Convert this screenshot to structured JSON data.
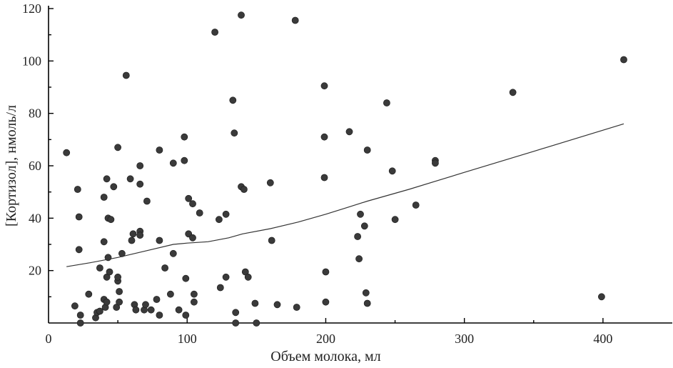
{
  "chart_data": {
    "type": "scatter",
    "xlabel": "Объем молока, мл",
    "ylabel": "[Кортизол], нмоль/л",
    "xlim": [
      0,
      450
    ],
    "ylim": [
      0,
      120
    ],
    "x_ticks": [
      0,
      100,
      200,
      300,
      400
    ],
    "x_tick_labels": [
      "0",
      "100",
      "200",
      "300",
      "400"
    ],
    "y_ticks": [
      20,
      40,
      60,
      80,
      100,
      120
    ],
    "y_tick_labels": [
      "20",
      "40",
      "60",
      "80",
      "100",
      "120"
    ],
    "grid": false,
    "points": [
      {
        "x": 13,
        "y": 65
      },
      {
        "x": 19,
        "y": 6.5
      },
      {
        "x": 21,
        "y": 51
      },
      {
        "x": 22,
        "y": 40.5
      },
      {
        "x": 22,
        "y": 28
      },
      {
        "x": 23,
        "y": 3
      },
      {
        "x": 23,
        "y": 0
      },
      {
        "x": 29,
        "y": 11
      },
      {
        "x": 34,
        "y": 2
      },
      {
        "x": 35,
        "y": 4
      },
      {
        "x": 37,
        "y": 4.5
      },
      {
        "x": 37,
        "y": 21
      },
      {
        "x": 40,
        "y": 48
      },
      {
        "x": 40,
        "y": 31
      },
      {
        "x": 40,
        "y": 9
      },
      {
        "x": 41,
        "y": 6
      },
      {
        "x": 42,
        "y": 55
      },
      {
        "x": 42,
        "y": 17.5
      },
      {
        "x": 42,
        "y": 8
      },
      {
        "x": 43,
        "y": 40
      },
      {
        "x": 43,
        "y": 25
      },
      {
        "x": 44,
        "y": 19.5
      },
      {
        "x": 45,
        "y": 39.5
      },
      {
        "x": 47,
        "y": 52
      },
      {
        "x": 49,
        "y": 6
      },
      {
        "x": 50,
        "y": 67
      },
      {
        "x": 50,
        "y": 16
      },
      {
        "x": 50,
        "y": 17.5
      },
      {
        "x": 51,
        "y": 8
      },
      {
        "x": 51,
        "y": 12
      },
      {
        "x": 53,
        "y": 26.5
      },
      {
        "x": 56,
        "y": 94.5
      },
      {
        "x": 59,
        "y": 55
      },
      {
        "x": 60,
        "y": 31.5
      },
      {
        "x": 61,
        "y": 34
      },
      {
        "x": 62,
        "y": 7
      },
      {
        "x": 63,
        "y": 5
      },
      {
        "x": 66,
        "y": 60
      },
      {
        "x": 66,
        "y": 53
      },
      {
        "x": 66,
        "y": 35
      },
      {
        "x": 66,
        "y": 33.5
      },
      {
        "x": 69,
        "y": 5
      },
      {
        "x": 70,
        "y": 7
      },
      {
        "x": 71,
        "y": 46.5
      },
      {
        "x": 74,
        "y": 5
      },
      {
        "x": 78,
        "y": 9
      },
      {
        "x": 80,
        "y": 66
      },
      {
        "x": 80,
        "y": 31.5
      },
      {
        "x": 80,
        "y": 3
      },
      {
        "x": 84,
        "y": 21
      },
      {
        "x": 88,
        "y": 11
      },
      {
        "x": 90,
        "y": 61
      },
      {
        "x": 90,
        "y": 26.5
      },
      {
        "x": 94,
        "y": 5
      },
      {
        "x": 98,
        "y": 71
      },
      {
        "x": 98,
        "y": 62
      },
      {
        "x": 99,
        "y": 17
      },
      {
        "x": 99,
        "y": 3
      },
      {
        "x": 101,
        "y": 47.5
      },
      {
        "x": 101,
        "y": 34
      },
      {
        "x": 104,
        "y": 45.5
      },
      {
        "x": 104,
        "y": 32.5
      },
      {
        "x": 105,
        "y": 11
      },
      {
        "x": 105,
        "y": 8
      },
      {
        "x": 109,
        "y": 42
      },
      {
        "x": 120,
        "y": 111
      },
      {
        "x": 123,
        "y": 39.5
      },
      {
        "x": 124,
        "y": 13.5
      },
      {
        "x": 128,
        "y": 41.5
      },
      {
        "x": 128,
        "y": 17.5
      },
      {
        "x": 133,
        "y": 85
      },
      {
        "x": 134,
        "y": 72.5
      },
      {
        "x": 135,
        "y": 4
      },
      {
        "x": 135,
        "y": 0
      },
      {
        "x": 139,
        "y": 117.5
      },
      {
        "x": 139,
        "y": 52
      },
      {
        "x": 141,
        "y": 51
      },
      {
        "x": 142,
        "y": 19.5
      },
      {
        "x": 144,
        "y": 17.5
      },
      {
        "x": 149,
        "y": 7.5
      },
      {
        "x": 150,
        "y": 0
      },
      {
        "x": 160,
        "y": 53.5
      },
      {
        "x": 161,
        "y": 31.5
      },
      {
        "x": 165,
        "y": 7
      },
      {
        "x": 178,
        "y": 115.5
      },
      {
        "x": 179,
        "y": 6
      },
      {
        "x": 199,
        "y": 90.5
      },
      {
        "x": 199,
        "y": 71
      },
      {
        "x": 199,
        "y": 55.5
      },
      {
        "x": 200,
        "y": 19.5
      },
      {
        "x": 200,
        "y": 8
      },
      {
        "x": 217,
        "y": 73
      },
      {
        "x": 223,
        "y": 33
      },
      {
        "x": 224,
        "y": 24.5
      },
      {
        "x": 225,
        "y": 41.5
      },
      {
        "x": 228,
        "y": 37
      },
      {
        "x": 229,
        "y": 11.5
      },
      {
        "x": 230,
        "y": 7.5
      },
      {
        "x": 230,
        "y": 66
      },
      {
        "x": 244,
        "y": 84
      },
      {
        "x": 248,
        "y": 58
      },
      {
        "x": 250,
        "y": 39.5
      },
      {
        "x": 265,
        "y": 45
      },
      {
        "x": 279,
        "y": 62
      },
      {
        "x": 279,
        "y": 61
      },
      {
        "x": 335,
        "y": 88
      },
      {
        "x": 399,
        "y": 10
      },
      {
        "x": 415,
        "y": 100.5
      }
    ],
    "trend": [
      {
        "x": 13,
        "y": 21.5
      },
      {
        "x": 30,
        "y": 23
      },
      {
        "x": 50,
        "y": 25
      },
      {
        "x": 70,
        "y": 27.5
      },
      {
        "x": 90,
        "y": 30
      },
      {
        "x": 100,
        "y": 30.5
      },
      {
        "x": 115,
        "y": 31
      },
      {
        "x": 130,
        "y": 32.5
      },
      {
        "x": 140,
        "y": 34
      },
      {
        "x": 160,
        "y": 36
      },
      {
        "x": 180,
        "y": 38.5
      },
      {
        "x": 200,
        "y": 41.5
      },
      {
        "x": 215,
        "y": 44
      },
      {
        "x": 230,
        "y": 46.5
      },
      {
        "x": 260,
        "y": 51
      },
      {
        "x": 300,
        "y": 57.5
      },
      {
        "x": 350,
        "y": 65.5
      },
      {
        "x": 415,
        "y": 76
      }
    ],
    "colors": {
      "points": "#3a3a3a",
      "line": "#333333",
      "axes": "#000000"
    }
  }
}
